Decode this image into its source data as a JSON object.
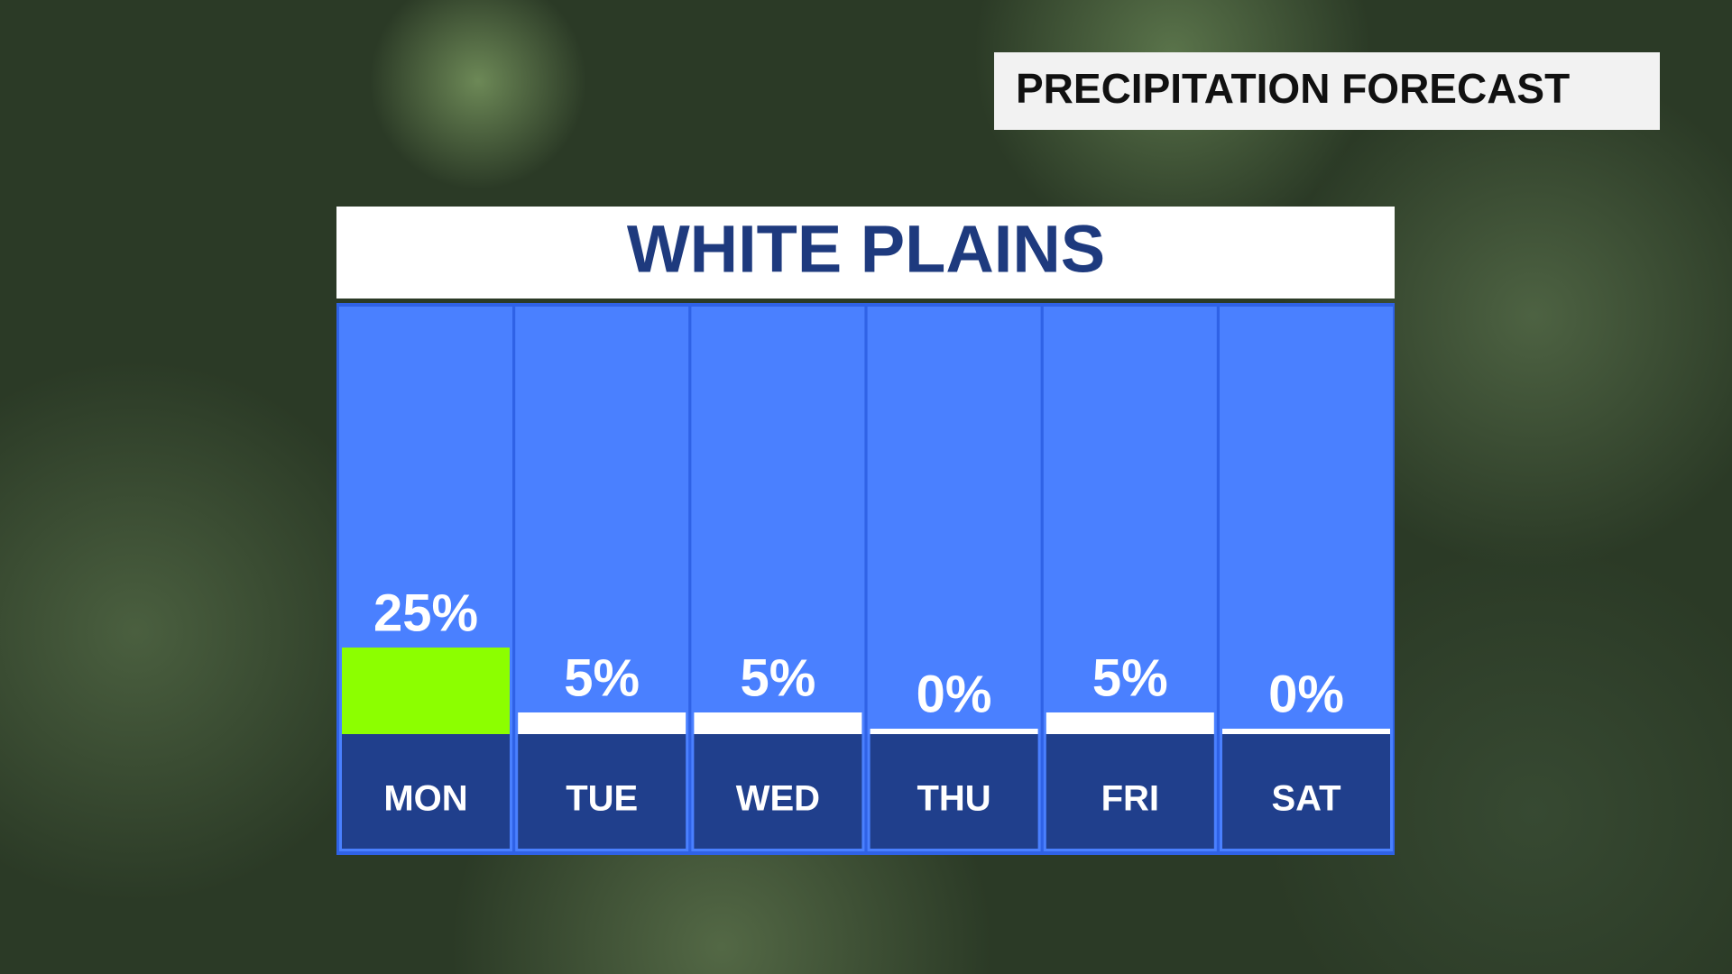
{
  "chart_data": {
    "type": "bar",
    "title": "PRECIPITATION FORECAST",
    "subtitle": "WHITE PLAINS",
    "categories": [
      "MON",
      "TUE",
      "WED",
      "THU",
      "FRI",
      "SAT"
    ],
    "values": [
      25,
      5,
      5,
      0,
      5,
      0
    ],
    "value_labels": [
      "25%",
      "5%",
      "5%",
      "0%",
      "5%",
      "0%"
    ],
    "colors": [
      "#8cff00",
      "#ffffff",
      "#ffffff",
      "#ffffff",
      "#ffffff",
      "#ffffff"
    ]
  }
}
